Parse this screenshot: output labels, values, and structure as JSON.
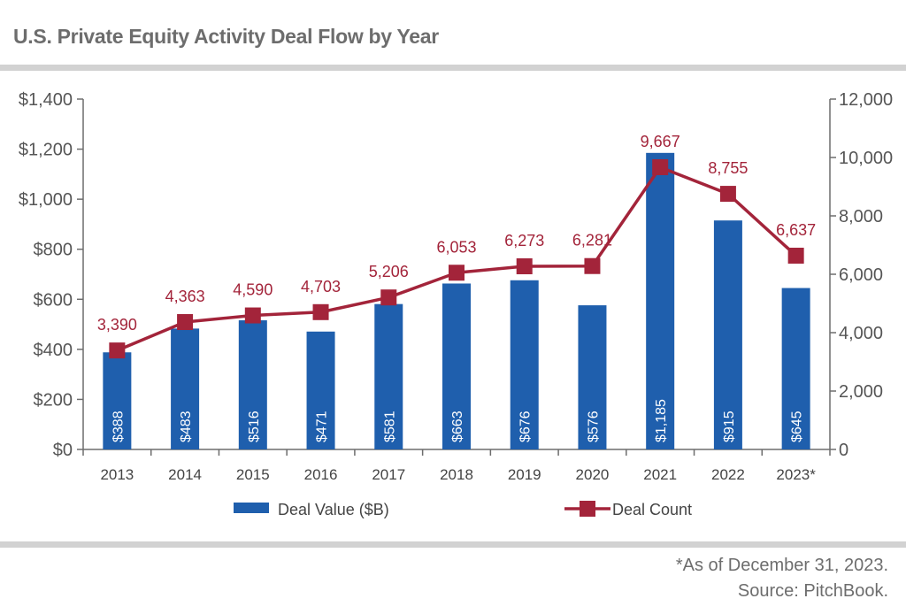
{
  "title": "U.S. Private Equity Activity Deal Flow by Year",
  "footnote": "*As of December 31, 2023.",
  "source": "Source: PitchBook.",
  "chart_data": {
    "type": "bar",
    "title": "U.S. Private Equity Activity Deal Flow by Year",
    "categories": [
      "2013",
      "2014",
      "2015",
      "2016",
      "2017",
      "2018",
      "2019",
      "2020",
      "2021",
      "2022",
      "2023*"
    ],
    "series": [
      {
        "name": "Deal Value ($B)",
        "type": "bar",
        "axis": "left",
        "color": "#1f5fad",
        "values": [
          388,
          483,
          516,
          471,
          581,
          663,
          676,
          576,
          1185,
          915,
          645
        ],
        "labels": [
          "$388",
          "$483",
          "$516",
          "$471",
          "$581",
          "$663",
          "$676",
          "$576",
          "$1,185",
          "$915",
          "$645"
        ]
      },
      {
        "name": "Deal Count",
        "type": "line",
        "axis": "right",
        "color": "#a3243a",
        "values": [
          3390,
          4363,
          4590,
          4703,
          5206,
          6053,
          6273,
          6281,
          9667,
          8755,
          6637
        ],
        "labels": [
          "3,390",
          "4,363",
          "4,590",
          "4,703",
          "5,206",
          "6,053",
          "6,273",
          "6,281",
          "9,667",
          "8,755",
          "6,637"
        ]
      }
    ],
    "left_axis": {
      "ylim": [
        0,
        1400
      ],
      "ticks": [
        0,
        200,
        400,
        600,
        800,
        1000,
        1200,
        1400
      ],
      "tick_labels": [
        "$0",
        "$200",
        "$400",
        "$600",
        "$800",
        "$1,000",
        "$1,200",
        "$1,400"
      ]
    },
    "right_axis": {
      "ylim": [
        0,
        12000
      ],
      "ticks": [
        0,
        2000,
        4000,
        6000,
        8000,
        10000,
        12000
      ],
      "tick_labels": [
        "0",
        "2,000",
        "4,000",
        "6,000",
        "8,000",
        "10,000",
        "12,000"
      ]
    },
    "legend": [
      "Deal Value ($B)",
      "Deal Count"
    ],
    "legend_position": "bottom"
  }
}
